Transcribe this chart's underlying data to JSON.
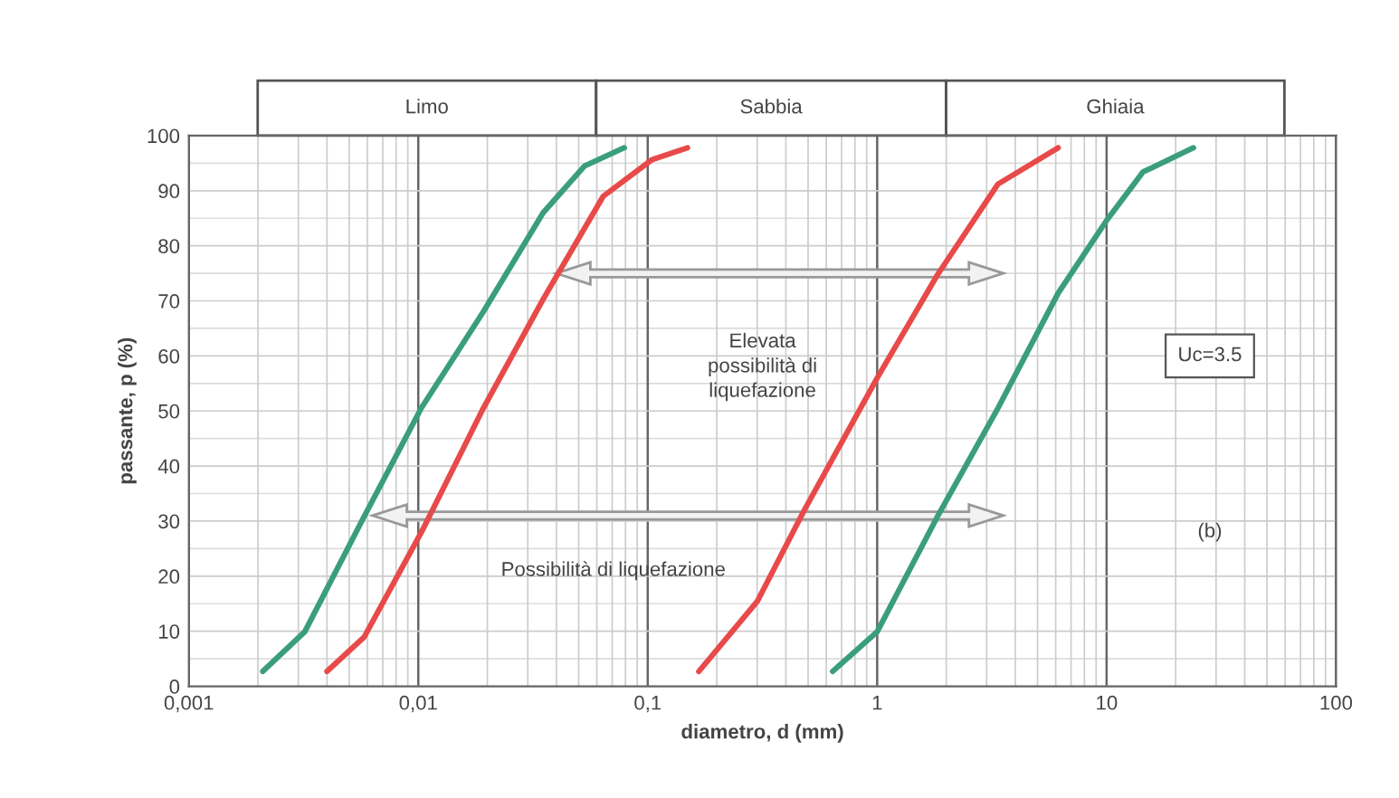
{
  "chart_data": {
    "type": "line",
    "xlabel": "diametro, d (mm)",
    "ylabel": "passante, p (%)",
    "log": "x",
    "grid": true,
    "marker": "none",
    "line_style": "solid",
    "xlim": [
      0.001,
      100
    ],
    "ylim": [
      0,
      100
    ],
    "xticks": [
      {
        "value": 0.001,
        "label": "0,001"
      },
      {
        "value": 0.01,
        "label": "0,01"
      },
      {
        "value": 0.1,
        "label": "0,1"
      },
      {
        "value": 1,
        "label": "1"
      },
      {
        "value": 10,
        "label": "10"
      },
      {
        "value": 100,
        "label": "100"
      }
    ],
    "yticks": [
      0,
      10,
      20,
      30,
      40,
      50,
      60,
      70,
      80,
      90,
      100
    ],
    "series": [
      {
        "color": "#3a9e7a",
        "x": [
          0.0021,
          0.0032,
          0.0058,
          0.0103,
          0.0192,
          0.035,
          0.053,
          0.079
        ],
        "values": [
          2.7,
          9.9,
          30.8,
          50.5,
          68,
          86,
          94.5,
          97.8
        ]
      },
      {
        "color": "#e84a4a",
        "x": [
          0.004,
          0.0058,
          0.0105,
          0.0192,
          0.035,
          0.064,
          0.104,
          0.149
        ],
        "values": [
          2.7,
          8.9,
          28.6,
          50.5,
          70.3,
          89,
          95.6,
          97.8
        ]
      },
      {
        "color": "#e84a4a",
        "x": [
          0.167,
          0.3,
          0.48,
          1,
          1.83,
          3.36,
          6.15
        ],
        "values": [
          2.7,
          15.4,
          31.9,
          56,
          74.7,
          91.2,
          97.8
        ]
      },
      {
        "color": "#3a9e7a",
        "x": [
          0.64,
          1,
          1.83,
          3.36,
          6.15,
          10,
          14.4,
          23.9
        ],
        "values": [
          2.7,
          9.9,
          30.8,
          50.5,
          71.4,
          84.6,
          93.4,
          97.8
        ]
      }
    ],
    "annotations": [
      "Elevata\npossibilità di\nliquefazione",
      "Possibilità di liquefazione",
      "Uc=3.5",
      "(b)",
      "Limo",
      "Sabbia",
      "Ghiaia"
    ]
  }
}
